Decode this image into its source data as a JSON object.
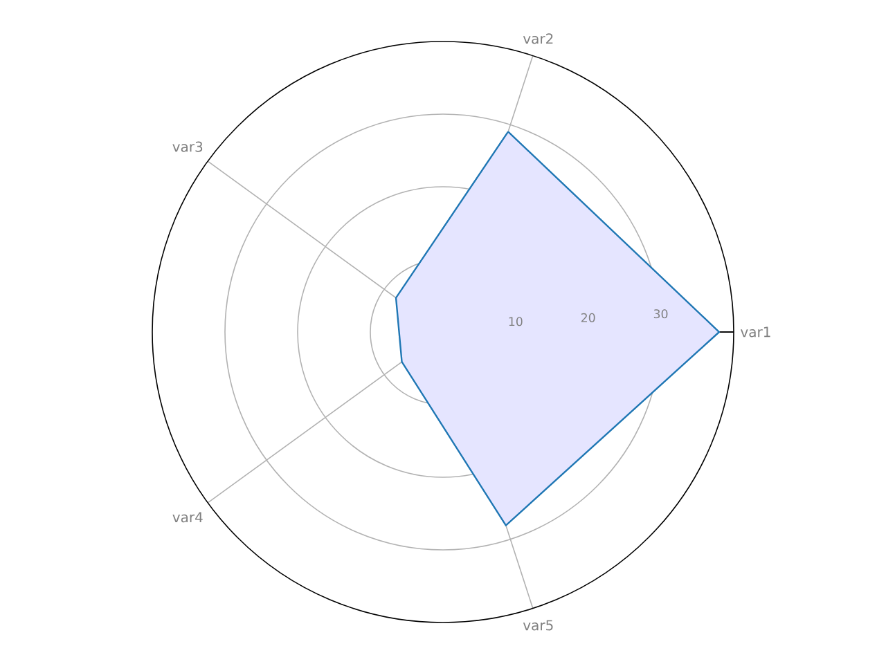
{
  "chart_data": {
    "type": "radar",
    "categories": [
      "var2",
      "var1",
      "var5",
      "var4",
      "var3"
    ],
    "series": [
      {
        "color": "#1f77b4",
        "values": [
          29,
          38,
          28,
          7,
          8
        ]
      }
    ],
    "ylim": [
      0,
      40
    ],
    "yticks": [
      10,
      20,
      30
    ],
    "grid": true
  }
}
